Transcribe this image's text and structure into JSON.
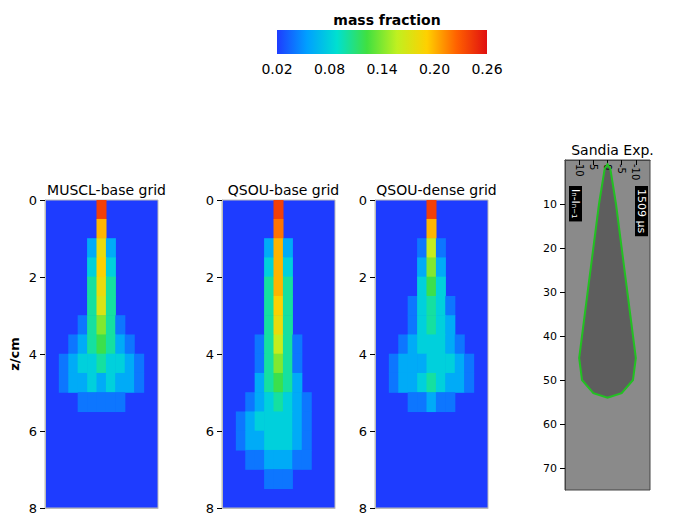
{
  "colorbar": {
    "title": "mass fraction",
    "range": [
      0.02,
      0.26
    ],
    "ticks": [
      0.02,
      0.08,
      0.14,
      {
        "value": 0.2,
        "label": "0.20"
      },
      0.26
    ],
    "colors": [
      "#1e3cff",
      "#00a0ff",
      "#00e0d0",
      "#40e040",
      "#c0f020",
      "#ffd000",
      "#ff6000",
      "#e01010"
    ]
  },
  "chart_data": [
    {
      "type": "heatmap",
      "title": "MUSCL-base grid",
      "ylabel": "z/cm",
      "tick_labels": "y",
      "xlim": [
        -1.5,
        1.5
      ],
      "ylim": [
        0,
        8
      ],
      "yticks": [
        0,
        2,
        4,
        6,
        8
      ],
      "x": [
        -1.0,
        -0.75,
        -0.5,
        -0.25,
        0,
        0.25,
        0.5,
        0.75,
        1.0
      ],
      "y": [
        0.25,
        0.75,
        1.25,
        1.75,
        2.25,
        2.75,
        3.25,
        3.75,
        4.25,
        4.75,
        5.25,
        5.75,
        6.25,
        6.75,
        7.25,
        7.75
      ],
      "values": [
        [
          null,
          null,
          null,
          null,
          0.24,
          null,
          null,
          null,
          null
        ],
        [
          null,
          null,
          null,
          null,
          0.2,
          null,
          null,
          null,
          null
        ],
        [
          null,
          null,
          null,
          0.06,
          0.18,
          0.06,
          null,
          null,
          null
        ],
        [
          null,
          null,
          null,
          0.08,
          0.19,
          0.08,
          null,
          null,
          null
        ],
        [
          null,
          null,
          null,
          0.1,
          0.18,
          0.1,
          null,
          null,
          null
        ],
        [
          null,
          null,
          null,
          0.1,
          0.17,
          0.1,
          null,
          null,
          null
        ],
        [
          null,
          null,
          0.04,
          0.1,
          0.14,
          0.1,
          0.04,
          null,
          null
        ],
        [
          null,
          0.04,
          0.06,
          0.1,
          0.12,
          0.1,
          0.06,
          0.04,
          null
        ],
        [
          0.04,
          0.06,
          0.08,
          0.08,
          0.1,
          0.08,
          0.08,
          0.06,
          0.04
        ],
        [
          0.04,
          0.06,
          0.06,
          0.08,
          0.06,
          0.08,
          0.06,
          0.06,
          0.04
        ],
        [
          null,
          null,
          0.04,
          0.04,
          0.04,
          0.04,
          0.04,
          null,
          null
        ],
        [
          null,
          null,
          null,
          null,
          null,
          null,
          null,
          null,
          null
        ],
        [
          null,
          null,
          null,
          null,
          null,
          null,
          null,
          null,
          null
        ],
        [
          null,
          null,
          null,
          null,
          null,
          null,
          null,
          null,
          null
        ],
        [
          null,
          null,
          null,
          null,
          null,
          null,
          null,
          null,
          null
        ],
        [
          null,
          null,
          null,
          null,
          null,
          null,
          null,
          null,
          null
        ]
      ]
    },
    {
      "type": "heatmap",
      "title": "QSOU-base grid",
      "tick_labels": "y",
      "xlim": [
        -1.5,
        1.5
      ],
      "ylim": [
        0,
        8
      ],
      "yticks": [
        0,
        2,
        4,
        6,
        8
      ],
      "x": [
        -1.0,
        -0.75,
        -0.5,
        -0.25,
        0,
        0.25,
        0.5,
        0.75,
        1.0
      ],
      "y": [
        0.25,
        0.75,
        1.25,
        1.75,
        2.25,
        2.75,
        3.25,
        3.75,
        4.25,
        4.75,
        5.25,
        5.75,
        6.25,
        6.75,
        7.25,
        7.75
      ],
      "values": [
        [
          null,
          null,
          null,
          null,
          0.24,
          null,
          null,
          null,
          null
        ],
        [
          null,
          null,
          null,
          null,
          0.22,
          null,
          null,
          null,
          null
        ],
        [
          null,
          null,
          null,
          0.06,
          0.2,
          0.06,
          null,
          null,
          null
        ],
        [
          null,
          null,
          null,
          0.08,
          0.2,
          0.08,
          null,
          null,
          null
        ],
        [
          null,
          null,
          null,
          0.1,
          0.2,
          0.1,
          null,
          null,
          null
        ],
        [
          null,
          null,
          null,
          0.1,
          0.19,
          0.1,
          null,
          null,
          null
        ],
        [
          null,
          null,
          null,
          0.1,
          0.18,
          0.1,
          null,
          null,
          null
        ],
        [
          null,
          null,
          0.04,
          0.1,
          0.16,
          0.1,
          0.04,
          null,
          null
        ],
        [
          null,
          null,
          0.04,
          0.1,
          0.14,
          0.1,
          0.04,
          null,
          null
        ],
        [
          null,
          null,
          0.06,
          0.1,
          0.12,
          0.1,
          0.06,
          null,
          null
        ],
        [
          null,
          0.04,
          0.06,
          0.08,
          0.1,
          0.08,
          0.06,
          0.04,
          null
        ],
        [
          0.04,
          0.06,
          0.08,
          0.08,
          0.08,
          0.08,
          0.06,
          0.04,
          null
        ],
        [
          0.04,
          0.06,
          0.06,
          0.08,
          0.08,
          0.08,
          0.06,
          0.04,
          null
        ],
        [
          null,
          0.04,
          0.04,
          0.06,
          0.06,
          0.06,
          0.04,
          0.04,
          null
        ],
        [
          null,
          null,
          null,
          0.04,
          0.04,
          0.04,
          null,
          null,
          null
        ],
        [
          null,
          null,
          null,
          null,
          null,
          null,
          null,
          null,
          null
        ]
      ]
    },
    {
      "type": "heatmap",
      "title": "QSOU-dense grid",
      "tick_labels": "y",
      "xlim": [
        -1.5,
        1.5
      ],
      "ylim": [
        0,
        8
      ],
      "yticks": [
        0,
        2,
        4,
        6,
        8
      ],
      "x": [
        -1.0,
        -0.75,
        -0.5,
        -0.25,
        0,
        0.25,
        0.5,
        0.75,
        1.0
      ],
      "y": [
        0.25,
        0.75,
        1.25,
        1.75,
        2.25,
        2.75,
        3.25,
        3.75,
        4.25,
        4.75,
        5.25,
        5.75,
        6.25,
        6.75,
        7.25,
        7.75
      ],
      "values": [
        [
          null,
          null,
          null,
          null,
          0.24,
          null,
          null,
          null,
          null
        ],
        [
          null,
          null,
          null,
          null,
          0.2,
          null,
          null,
          null,
          null
        ],
        [
          null,
          null,
          null,
          0.04,
          0.16,
          0.04,
          null,
          null,
          null
        ],
        [
          null,
          null,
          null,
          0.06,
          0.14,
          0.06,
          null,
          null,
          null
        ],
        [
          null,
          null,
          null,
          0.08,
          0.12,
          0.08,
          null,
          null,
          null
        ],
        [
          null,
          null,
          0.04,
          0.08,
          0.1,
          0.08,
          0.04,
          null,
          null
        ],
        [
          null,
          null,
          0.04,
          0.08,
          0.1,
          0.08,
          0.06,
          null,
          null
        ],
        [
          null,
          0.04,
          0.06,
          0.08,
          0.08,
          0.08,
          0.06,
          0.04,
          null
        ],
        [
          0.04,
          0.06,
          0.06,
          0.06,
          0.08,
          0.08,
          0.08,
          0.06,
          0.04
        ],
        [
          0.04,
          0.06,
          0.06,
          0.08,
          0.1,
          0.08,
          0.06,
          0.06,
          0.04
        ],
        [
          null,
          null,
          0.04,
          0.04,
          0.06,
          0.04,
          0.04,
          null,
          null
        ],
        [
          null,
          null,
          null,
          null,
          null,
          null,
          null,
          null,
          null
        ],
        [
          null,
          null,
          null,
          null,
          null,
          null,
          null,
          null,
          null
        ],
        [
          null,
          null,
          null,
          null,
          null,
          null,
          null,
          null,
          null
        ],
        [
          null,
          null,
          null,
          null,
          null,
          null,
          null,
          null,
          null
        ],
        [
          null,
          null,
          null,
          null,
          null,
          null,
          null,
          null,
          null
        ]
      ]
    },
    {
      "type": "outline",
      "title": "Sandia Exp.",
      "annotations": [
        "Iₙ-Iₙ₋₁",
        "1509 μs"
      ],
      "xlim": [
        -15,
        15
      ],
      "xticks": [
        10,
        5,
        0,
        -5,
        -10
      ],
      "ylim": [
        0,
        75
      ],
      "yticks": [
        10,
        20,
        30,
        40,
        50,
        60,
        70
      ],
      "color": "#22c022",
      "x": [
        0,
        1,
        3,
        5,
        7,
        9,
        10,
        9,
        5,
        0,
        -5,
        -9,
        -10,
        -9,
        -7,
        -5,
        -3,
        -1
      ],
      "y": [
        1,
        2,
        10,
        20,
        30,
        40,
        45,
        50,
        53,
        54,
        53,
        50,
        45,
        40,
        30,
        20,
        10,
        2
      ]
    }
  ]
}
